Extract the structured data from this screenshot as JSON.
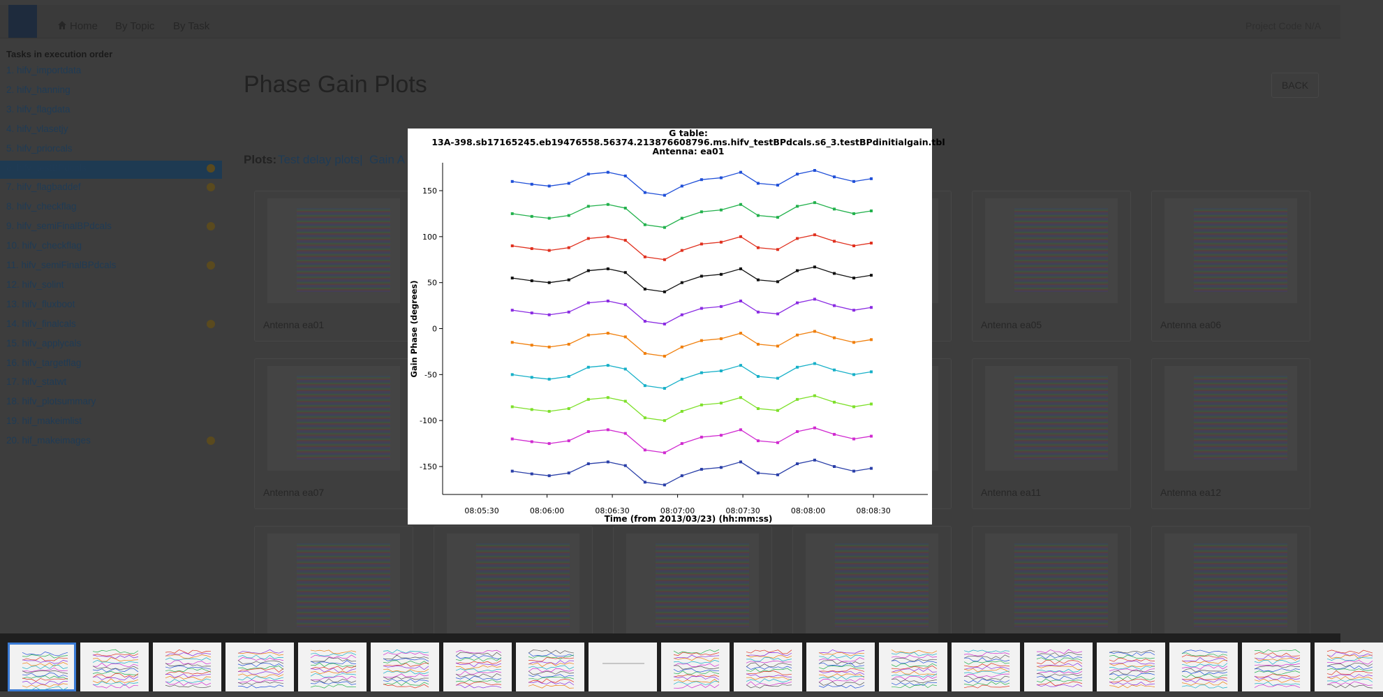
{
  "navbar": {
    "links": [
      "Home",
      "By Topic",
      "By Task"
    ],
    "project_code": "Project Code N/A"
  },
  "sidebar": {
    "heading": "Tasks in execution order",
    "tasks": [
      "1. hifv_importdata",
      "2. hifv_hanning",
      "3. hifv_flagdata",
      "4. hifv_vlasetjy",
      "5. hifv_priorcals",
      "6. hifv_testBPdcals",
      "7. hifv_flagbaddef",
      "8. hifv_checkflag",
      "9. hifv_semiFinalBPdcals",
      "10. hifv_checkflag",
      "11. hifv_semiFinalBPdcals",
      "12. hifv_solint",
      "13. hifv_fluxboot",
      "14. hifv_finalcals",
      "15. hifv_applycals",
      "16. hifv_targetflag",
      "17. hifv_statwt",
      "18. hifv_plotsummary",
      "19. hif_makeimlist",
      "20. hif_makeimages"
    ]
  },
  "main": {
    "title": "Phase Gain Plots",
    "back_button": "BACK",
    "plots_label": "Plots:",
    "plot_links": [
      "Test delay plots|",
      "Gain A"
    ],
    "cards": [
      "Antenna ea01",
      "Antenna ea05",
      "Antenna ea06",
      "Antenna ea07",
      "Antenna ea11",
      "Antenna ea12"
    ]
  },
  "chart_data": {
    "type": "line",
    "title": [
      "G table:",
      "13A-398.sb17165245.eb19476558.56374.213876608796.ms.hifv_testBPdcals.s6_3.testBPdinitialgain.tbl",
      "Antenna: ea01"
    ],
    "x_label": "Time (from 2013/03/23) (hh:mm:ss)",
    "y_label": "Gain Phase (degrees)",
    "xlim": [
      29112,
      29335
    ],
    "ylim": [
      -180,
      180
    ],
    "xticks": [
      {
        "value": 29130,
        "label": "08:05:30"
      },
      {
        "value": 29160,
        "label": "08:06:00"
      },
      {
        "value": 29190,
        "label": "08:06:30"
      },
      {
        "value": 29220,
        "label": "08:07:00"
      },
      {
        "value": 29250,
        "label": "08:07:30"
      },
      {
        "value": 29280,
        "label": "08:08:00"
      },
      {
        "value": 29310,
        "label": "08:08:30"
      }
    ],
    "yticks": [
      150,
      100,
      50,
      0,
      -50,
      -100,
      -150
    ],
    "x": [
      29144,
      29153,
      29161,
      29170,
      29179,
      29188,
      29196,
      29205,
      29214,
      29222,
      29231,
      29240,
      29249,
      29257,
      29266,
      29275,
      29283,
      29292,
      29301,
      29309
    ],
    "series": [
      {
        "color": "#1f4fd8",
        "values": [
          160,
          157,
          155,
          158,
          168,
          170,
          166,
          148,
          145,
          155,
          162,
          164,
          170,
          158,
          156,
          168,
          172,
          165,
          160,
          163
        ]
      },
      {
        "color": "#22b14c",
        "values": [
          125,
          122,
          120,
          123,
          133,
          135,
          131,
          113,
          110,
          120,
          127,
          129,
          135,
          123,
          121,
          133,
          137,
          130,
          125,
          128
        ]
      },
      {
        "color": "#e0301e",
        "values": [
          90,
          87,
          85,
          88,
          98,
          100,
          96,
          78,
          75,
          85,
          92,
          94,
          100,
          88,
          86,
          98,
          102,
          95,
          90,
          93
        ]
      },
      {
        "color": "#111111",
        "values": [
          55,
          52,
          50,
          53,
          63,
          65,
          61,
          43,
          40,
          50,
          57,
          59,
          65,
          53,
          51,
          63,
          67,
          60,
          55,
          58
        ]
      },
      {
        "color": "#8a2be2",
        "values": [
          20,
          17,
          15,
          18,
          28,
          30,
          26,
          8,
          5,
          15,
          22,
          24,
          30,
          18,
          16,
          28,
          32,
          25,
          20,
          23
        ]
      },
      {
        "color": "#f07f0c",
        "values": [
          -15,
          -18,
          -20,
          -17,
          -7,
          -5,
          -9,
          -27,
          -30,
          -20,
          -13,
          -11,
          -5,
          -17,
          -19,
          -7,
          -3,
          -10,
          -15,
          -12
        ]
      },
      {
        "color": "#17b0c8",
        "values": [
          -50,
          -53,
          -55,
          -52,
          -42,
          -40,
          -44,
          -62,
          -65,
          -55,
          -48,
          -46,
          -40,
          -52,
          -54,
          -42,
          -38,
          -45,
          -50,
          -47
        ]
      },
      {
        "color": "#7ee02a",
        "values": [
          -85,
          -88,
          -90,
          -87,
          -77,
          -75,
          -79,
          -97,
          -100,
          -90,
          -83,
          -81,
          -75,
          -87,
          -89,
          -77,
          -73,
          -80,
          -85,
          -82
        ]
      },
      {
        "color": "#d02ad0",
        "values": [
          -120,
          -123,
          -125,
          -122,
          -112,
          -110,
          -114,
          -132,
          -135,
          -125,
          -118,
          -116,
          -110,
          -122,
          -124,
          -112,
          -108,
          -115,
          -120,
          -117
        ]
      },
      {
        "color": "#2a3fa8",
        "values": [
          -155,
          -158,
          -160,
          -157,
          -147,
          -145,
          -149,
          -167,
          -170,
          -160,
          -153,
          -151,
          -145,
          -157,
          -159,
          -147,
          -143,
          -150,
          -155,
          -152
        ]
      }
    ]
  }
}
